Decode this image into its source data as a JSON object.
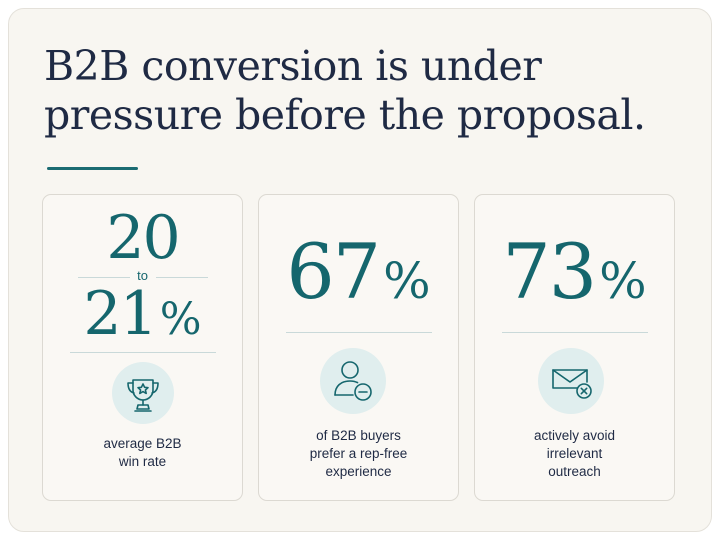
{
  "headline": {
    "line1": "B2B conversion is under",
    "line2": "pressure before the proposal."
  },
  "stats": [
    {
      "number_top": "20",
      "connector": "to",
      "number_bottom": "21",
      "unit": "%",
      "icon": "trophy-star-icon",
      "caption": [
        "average B2B",
        "win rate"
      ]
    },
    {
      "number": "67",
      "unit": "%",
      "icon": "user-remove-icon",
      "caption": [
        "of B2B buyers",
        "prefer a rep-free",
        "experience"
      ]
    },
    {
      "number": "73",
      "unit": "%",
      "icon": "mail-x-icon",
      "caption": [
        "actively avoid",
        "irrelevant",
        "outreach"
      ]
    }
  ],
  "colors": {
    "accent": "#15666d",
    "text": "#1f2a44",
    "icon_bg": "#e0eeee",
    "background": "#f8f6f1"
  }
}
